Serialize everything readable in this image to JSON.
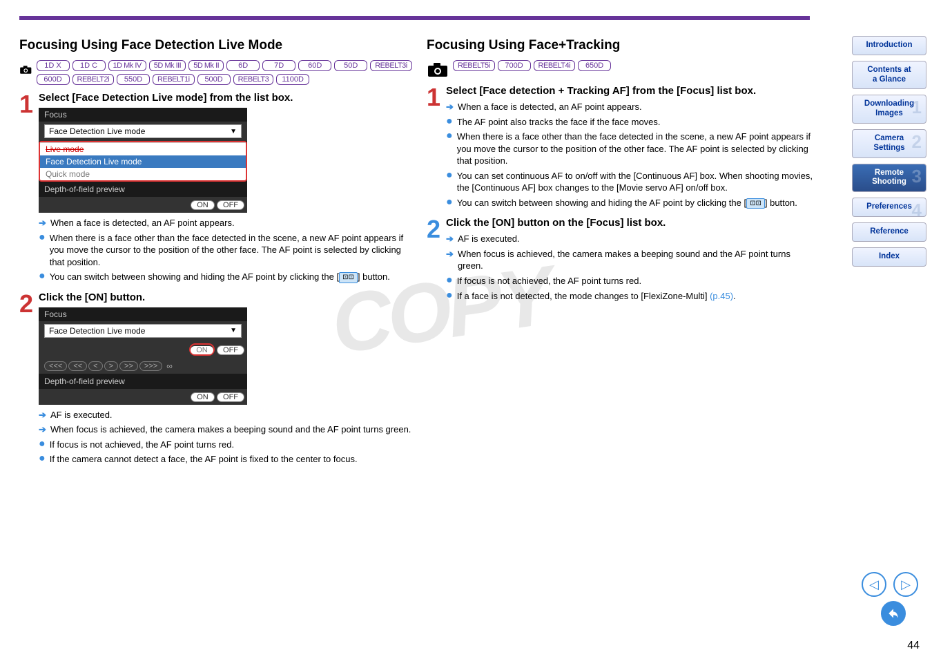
{
  "left": {
    "title": "Focusing Using Face Detection Live Mode",
    "cameras": [
      "1D X",
      "1D C",
      "1D Mk IV",
      "5D Mk III",
      "5D Mk II",
      "6D",
      "7D",
      "60D",
      "50D",
      "REBELT3i",
      "600D",
      "REBELT2i",
      "550D",
      "REBELT1i",
      "500D",
      "REBELT3",
      "1100D"
    ],
    "step1": {
      "heading": "Select [Face Detection Live mode] from the list box.",
      "panel": {
        "title": "Focus",
        "selected": "Face Detection Live mode",
        "opt_striked": "Live mode",
        "opt_hl": "Face Detection Live mode",
        "opt_quick": "Quick mode",
        "depth": "Depth-of-field preview",
        "on": "ON",
        "off": "OFF"
      },
      "bullets": [
        {
          "t": "arrow",
          "text": "When a face is detected, an AF point appears."
        },
        {
          "t": "dot",
          "text": "When there is a face other than the face detected in the scene, a new AF point appears if you move the cursor to the position of the other face. The AF point is selected by clicking that position."
        },
        {
          "t": "dot",
          "text_pre": "You can switch between showing and hiding the AF point by clicking the [",
          "text_post": "] button."
        }
      ]
    },
    "step2": {
      "heading": "Click the [ON] button.",
      "panel": {
        "title": "Focus",
        "selected": "Face Detection Live mode",
        "on": "ON",
        "off": "OFF",
        "arrows": [
          "<<<",
          "<<",
          "<",
          ">",
          ">>",
          ">>>"
        ],
        "inf": "∞",
        "depth": "Depth-of-field preview"
      },
      "bullets": [
        {
          "t": "arrow",
          "text": "AF is executed."
        },
        {
          "t": "arrow",
          "text": "When focus is achieved, the camera makes a beeping sound and the AF point turns green."
        },
        {
          "t": "dot",
          "text": "If focus is not achieved, the AF point turns red."
        },
        {
          "t": "dot",
          "text": "If the camera cannot detect a face, the AF point is fixed to the center to focus."
        }
      ]
    }
  },
  "right": {
    "title": "Focusing Using Face+Tracking",
    "cameras": [
      "REBELT5i",
      "700D",
      "REBELT4i",
      "650D"
    ],
    "step1": {
      "heading": "Select [Face detection + Tracking AF] from the [Focus] list box.",
      "bullets": [
        {
          "t": "arrow",
          "text": "When a face is detected, an AF point appears."
        },
        {
          "t": "dot",
          "text": "The AF point also tracks the face if the face moves."
        },
        {
          "t": "dot",
          "text": "When there is a face other than the face detected in the scene, a new AF point appears if you move the cursor to the position of the other face. The AF point is selected by clicking that position."
        },
        {
          "t": "dot",
          "text": "You can set continuous AF to on/off with the [Continuous AF] box. When shooting movies, the [Continuous AF] box changes to the [Movie servo AF] on/off box."
        },
        {
          "t": "dot",
          "text_pre": "You can switch between showing and hiding the AF point by clicking the [",
          "text_post": "] button."
        }
      ]
    },
    "step2": {
      "heading": "Click the [ON] button on the [Focus] list box.",
      "bullets": [
        {
          "t": "arrow",
          "text": "AF is executed."
        },
        {
          "t": "arrow",
          "text": "When focus is achieved, the camera makes a beeping sound and the AF point turns green."
        },
        {
          "t": "dot",
          "text": "If focus is not achieved, the AF point turns red."
        },
        {
          "t": "dot",
          "text_pre": "If a face is not detected, the mode changes to [FlexiZone-Multi] ",
          "link": "(p.45)",
          "text_post": "."
        }
      ]
    }
  },
  "sidebar": {
    "items": [
      {
        "label": "Introduction"
      },
      {
        "label": "Contents at a Glance"
      },
      {
        "label": "Downloading Images",
        "num": "1"
      },
      {
        "label": "Camera Settings",
        "num": "2"
      },
      {
        "label": "Remote Shooting",
        "num": "3",
        "active": true
      },
      {
        "label": "Preferences",
        "num": "4"
      },
      {
        "label": "Reference"
      },
      {
        "label": "Index"
      }
    ]
  },
  "watermark": "COPY",
  "pagenum": "44"
}
